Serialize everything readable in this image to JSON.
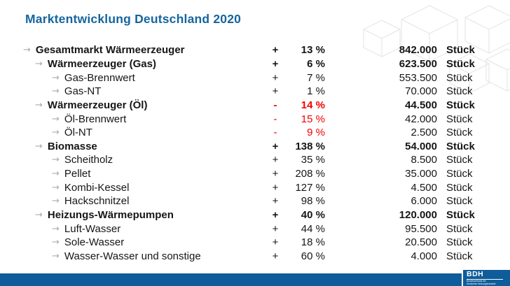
{
  "slide": {
    "title": "Marktentwicklung Deutschland 2020"
  },
  "colors": {
    "accent_blue": "#15659E",
    "footer_bar_blue": "#0E5C99",
    "negative_red": "#F40000",
    "bullet_gray": "#ABABAB",
    "cube_outline_gray": "#E3E3E3",
    "text_black": "#161616"
  },
  "table": {
    "unit_label": "Stück",
    "rows": [
      {
        "label": "Gesamtmarkt Wärmeerzeuger",
        "level": 1,
        "bold": true,
        "sign": "+",
        "percent": "13 %",
        "value": "842.000",
        "negative": false
      },
      {
        "label": "Wärmeerzeuger (Gas)",
        "level": 2,
        "bold": true,
        "sign": "+",
        "percent": "6 %",
        "value": "623.500",
        "negative": false
      },
      {
        "label": "Gas-Brennwert",
        "level": 3,
        "bold": false,
        "sign": "+",
        "percent": "7 %",
        "value": "553.500",
        "negative": false
      },
      {
        "label": "Gas-NT",
        "level": 3,
        "bold": false,
        "sign": "+",
        "percent": "1 %",
        "value": "70.000",
        "negative": false
      },
      {
        "label": "Wärmeerzeuger (Öl)",
        "level": 2,
        "bold": true,
        "sign": "-",
        "percent": "14 %",
        "value": "44.500",
        "negative": true
      },
      {
        "label": "Öl-Brennwert",
        "level": 3,
        "bold": false,
        "sign": "-",
        "percent": "15 %",
        "value": "42.000",
        "negative": true
      },
      {
        "label": "Öl-NT",
        "level": 3,
        "bold": false,
        "sign": "-",
        "percent": "9 %",
        "value": "2.500",
        "negative": true
      },
      {
        "label": "Biomasse",
        "level": 2,
        "bold": true,
        "sign": "+",
        "percent": "138 %",
        "value": "54.000",
        "negative": false
      },
      {
        "label": "Scheitholz",
        "level": 3,
        "bold": false,
        "sign": "+",
        "percent": "35 %",
        "value": "8.500",
        "negative": false
      },
      {
        "label": "Pellet",
        "level": 3,
        "bold": false,
        "sign": "+",
        "percent": "208 %",
        "value": "35.000",
        "negative": false
      },
      {
        "label": "Kombi-Kessel",
        "level": 3,
        "bold": false,
        "sign": "+",
        "percent": "127 %",
        "value": "4.500",
        "negative": false
      },
      {
        "label": "Hackschnitzel",
        "level": 3,
        "bold": false,
        "sign": "+",
        "percent": "98 %",
        "value": "6.000",
        "negative": false
      },
      {
        "label": "Heizungs-Wärmepumpen",
        "level": 2,
        "bold": true,
        "sign": "+",
        "percent": "40 %",
        "value": "120.000",
        "negative": false
      },
      {
        "label": "Luft-Wasser",
        "level": 3,
        "bold": false,
        "sign": "+",
        "percent": "44 %",
        "value": "95.500",
        "negative": false
      },
      {
        "label": "Sole-Wasser",
        "level": 3,
        "bold": false,
        "sign": "+",
        "percent": "18 %",
        "value": "20.500",
        "negative": false
      },
      {
        "label": "Wasser-Wasser und sonstige",
        "level": 3,
        "bold": false,
        "sign": "+",
        "percent": "60 %",
        "value": "4.000",
        "negative": false
      }
    ]
  },
  "footer": {
    "logo": {
      "acronym": "BDH",
      "subtitle_line1": "Bundesverband der",
      "subtitle_line2": "Deutschen Heizungsindustrie"
    }
  }
}
